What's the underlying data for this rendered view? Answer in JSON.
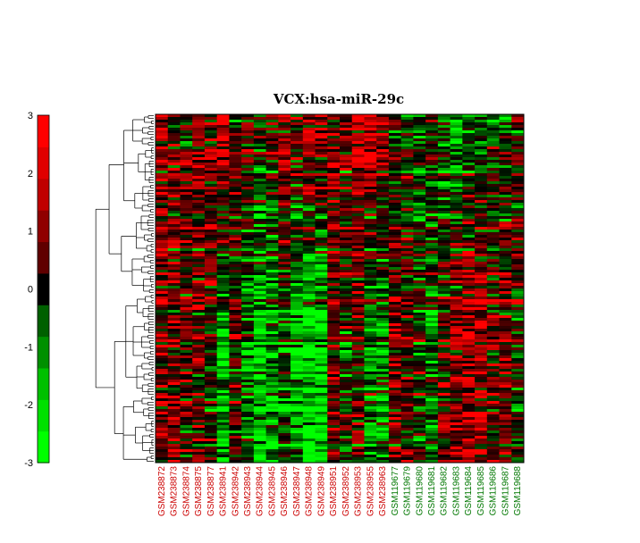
{
  "chart_data": {
    "type": "heatmap",
    "title": "VCX:hsa-miR-29c",
    "colorbar": {
      "ticks": [
        3,
        2,
        1,
        0,
        -1,
        -2,
        -3
      ],
      "range": [
        -3,
        3
      ],
      "colors": [
        "#00ff00",
        "#00e000",
        "#00c000",
        "#009000",
        "#006000",
        "#000000",
        "#600000",
        "#900000",
        "#c00000",
        "#e00000",
        "#ff0000"
      ]
    },
    "samples": [
      {
        "name": "GSM238872",
        "group_color": "#cc0000"
      },
      {
        "name": "GSM238873",
        "group_color": "#cc0000"
      },
      {
        "name": "GSM238874",
        "group_color": "#cc0000"
      },
      {
        "name": "GSM238875",
        "group_color": "#cc0000"
      },
      {
        "name": "GSM238877",
        "group_color": "#cc0000"
      },
      {
        "name": "GSM238941",
        "group_color": "#cc0000"
      },
      {
        "name": "GSM238942",
        "group_color": "#cc0000"
      },
      {
        "name": "GSM238943",
        "group_color": "#cc0000"
      },
      {
        "name": "GSM238944",
        "group_color": "#cc0000"
      },
      {
        "name": "GSM238945",
        "group_color": "#cc0000"
      },
      {
        "name": "GSM238946",
        "group_color": "#cc0000"
      },
      {
        "name": "GSM238947",
        "group_color": "#cc0000"
      },
      {
        "name": "GSM238948",
        "group_color": "#cc0000"
      },
      {
        "name": "GSM238949",
        "group_color": "#cc0000"
      },
      {
        "name": "GSM238951",
        "group_color": "#cc0000"
      },
      {
        "name": "GSM238952",
        "group_color": "#cc0000"
      },
      {
        "name": "GSM238953",
        "group_color": "#cc0000"
      },
      {
        "name": "GSM238955",
        "group_color": "#cc0000"
      },
      {
        "name": "GSM238963",
        "group_color": "#cc0000"
      },
      {
        "name": "GSM119677",
        "group_color": "#007700"
      },
      {
        "name": "GSM119679",
        "group_color": "#007700"
      },
      {
        "name": "GSM119680",
        "group_color": "#007700"
      },
      {
        "name": "GSM119681",
        "group_color": "#007700"
      },
      {
        "name": "GSM119682",
        "group_color": "#007700"
      },
      {
        "name": "GSM119683",
        "group_color": "#007700"
      },
      {
        "name": "GSM119684",
        "group_color": "#007700"
      },
      {
        "name": "GSM119685",
        "group_color": "#007700"
      },
      {
        "name": "GSM119686",
        "group_color": "#007700"
      },
      {
        "name": "GSM119687",
        "group_color": "#007700"
      },
      {
        "name": "GSM119688",
        "group_color": "#007700"
      }
    ],
    "n_rows": 130,
    "column_trend": [
      0.9,
      0.9,
      0.4,
      0.5,
      0.2,
      -1.2,
      0.3,
      -0.6,
      -1.3,
      -1.1,
      -0.5,
      -1.3,
      -1.6,
      -1.5,
      0.6,
      -0.2,
      0.4,
      -0.9,
      -0.9,
      0.8,
      0.5,
      -0.1,
      -0.8,
      0.4,
      0.8,
      1.2,
      1.1,
      0.6,
      0.7,
      -0.1
    ],
    "column_trend_top": [
      1.2,
      0.6,
      0.5,
      0.8,
      0.9,
      1.6,
      0.6,
      0.4,
      -0.2,
      0.2,
      0.8,
      0.6,
      1.2,
      1.1,
      1.0,
      0.8,
      1.3,
      1.7,
      1.2,
      -0.2,
      -0.6,
      -0.8,
      -0.2,
      -0.9,
      -1.1,
      -0.8,
      -0.7,
      -0.4,
      -0.3,
      0.3
    ],
    "grid": false,
    "legend": "left"
  }
}
